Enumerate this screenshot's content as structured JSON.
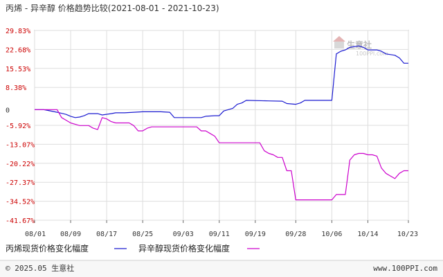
{
  "chart_data": {
    "type": "line",
    "title": "丙烯 - 异辛醇 价格趋势比较(2021-08-01 - 2021-10-23)",
    "ylabel": "",
    "xlabel": "",
    "y_ticks": [
      "29.83%",
      "22.68%",
      "15.53%",
      "8.38%",
      "0",
      "-5.92%",
      "-13.07%",
      "-20.22%",
      "-27.37%",
      "-34.52%",
      "-41.67%"
    ],
    "y_tick_values": [
      29.83,
      22.68,
      15.53,
      8.38,
      0,
      -5.92,
      -13.07,
      -20.22,
      -27.37,
      -34.52,
      -41.67
    ],
    "ylim": [
      -41.67,
      29.83
    ],
    "x_ticks": [
      "08/01",
      "08/09",
      "08/17",
      "08/25",
      "09/03",
      "09/11",
      "09/19",
      "09/28",
      "10/06",
      "10/14",
      "10/23"
    ],
    "x_tick_days": [
      0,
      8,
      16,
      24,
      33,
      41,
      49,
      58,
      66,
      74,
      83
    ],
    "xlim": [
      0,
      83
    ],
    "colors": {
      "positive_tick": "#cc0000",
      "negative_tick": "#cc0000",
      "zero_tick": "#333333",
      "grid": "#dddddd"
    },
    "series": [
      {
        "name": "丙烯现货价格变化幅度",
        "color": "#1a1ad0",
        "points": [
          [
            0,
            0
          ],
          [
            2,
            0
          ],
          [
            3,
            -0.3
          ],
          [
            5,
            -1
          ],
          [
            7,
            -1.8
          ],
          [
            8,
            -2.5
          ],
          [
            9,
            -3
          ],
          [
            10,
            -2.8
          ],
          [
            11,
            -2.3
          ],
          [
            12,
            -1.5
          ],
          [
            14,
            -1.5
          ],
          [
            15,
            -2
          ],
          [
            17,
            -1.5
          ],
          [
            18,
            -1.2
          ],
          [
            20,
            -1.2
          ],
          [
            22,
            -1
          ],
          [
            24,
            -0.8
          ],
          [
            28,
            -0.8
          ],
          [
            30,
            -1
          ],
          [
            31,
            -3
          ],
          [
            37,
            -3
          ],
          [
            38,
            -2.5
          ],
          [
            40,
            -2.3
          ],
          [
            41,
            -2.3
          ],
          [
            42,
            -0.5
          ],
          [
            44,
            0.5
          ],
          [
            45,
            2
          ],
          [
            46,
            2.5
          ],
          [
            47,
            3.5
          ],
          [
            52,
            3.3
          ],
          [
            55,
            3.2
          ],
          [
            56,
            2.3
          ],
          [
            58,
            2
          ],
          [
            59,
            2.5
          ],
          [
            60,
            3.5
          ],
          [
            65,
            3.5
          ],
          [
            66,
            3.5
          ],
          [
            67,
            21
          ],
          [
            68,
            22
          ],
          [
            69,
            22.5
          ],
          [
            70,
            23.5
          ],
          [
            72,
            24
          ],
          [
            73,
            23.5
          ],
          [
            74,
            22.5
          ],
          [
            76,
            22.5
          ],
          [
            77,
            22
          ],
          [
            78,
            21
          ],
          [
            80,
            20.5
          ],
          [
            81,
            19.5
          ],
          [
            82,
            17.5
          ],
          [
            83,
            17.5
          ]
        ]
      },
      {
        "name": "异辛醇现货价格变化幅度",
        "color": "#cc00cc",
        "points": [
          [
            0,
            0
          ],
          [
            5,
            0
          ],
          [
            6,
            -3
          ],
          [
            7,
            -4
          ],
          [
            8,
            -5
          ],
          [
            9,
            -5.5
          ],
          [
            10,
            -6
          ],
          [
            12,
            -6
          ],
          [
            13,
            -7
          ],
          [
            14,
            -7.5
          ],
          [
            15,
            -3
          ],
          [
            16,
            -3.5
          ],
          [
            17,
            -4.5
          ],
          [
            18,
            -5
          ],
          [
            21,
            -5
          ],
          [
            22,
            -6
          ],
          [
            23,
            -8
          ],
          [
            24,
            -8
          ],
          [
            25,
            -7
          ],
          [
            26,
            -6.5
          ],
          [
            36,
            -6.5
          ],
          [
            37,
            -8
          ],
          [
            38,
            -8
          ],
          [
            39,
            -9
          ],
          [
            40,
            -10
          ],
          [
            41,
            -12.5
          ],
          [
            50,
            -12.5
          ],
          [
            51,
            -15.5
          ],
          [
            52,
            -16.5
          ],
          [
            53,
            -17
          ],
          [
            54,
            -18
          ],
          [
            55,
            -18
          ],
          [
            56,
            -23
          ],
          [
            57,
            -23
          ],
          [
            58,
            -34
          ],
          [
            66,
            -34
          ],
          [
            67,
            -32
          ],
          [
            69,
            -32
          ],
          [
            70,
            -19
          ],
          [
            71,
            -17
          ],
          [
            72,
            -16.5
          ],
          [
            73,
            -16.5
          ],
          [
            74,
            -17
          ],
          [
            75,
            -17
          ],
          [
            76,
            -17.5
          ],
          [
            77,
            -22
          ],
          [
            78,
            -24
          ],
          [
            79,
            -25
          ],
          [
            80,
            -26
          ],
          [
            81,
            -24
          ],
          [
            82,
            -23
          ],
          [
            83,
            -23
          ]
        ]
      }
    ],
    "legend": {
      "position": "bottom-left",
      "entries": [
        "丙烯现货价格变化幅度",
        "异辛醇现货价格变化幅度"
      ]
    },
    "grid": true
  },
  "footer": {
    "copyright": "© 2025.05 生意社",
    "url": "www.100PPI.com"
  },
  "watermark": {
    "text": "生意社",
    "sub": "100PPI.com"
  }
}
